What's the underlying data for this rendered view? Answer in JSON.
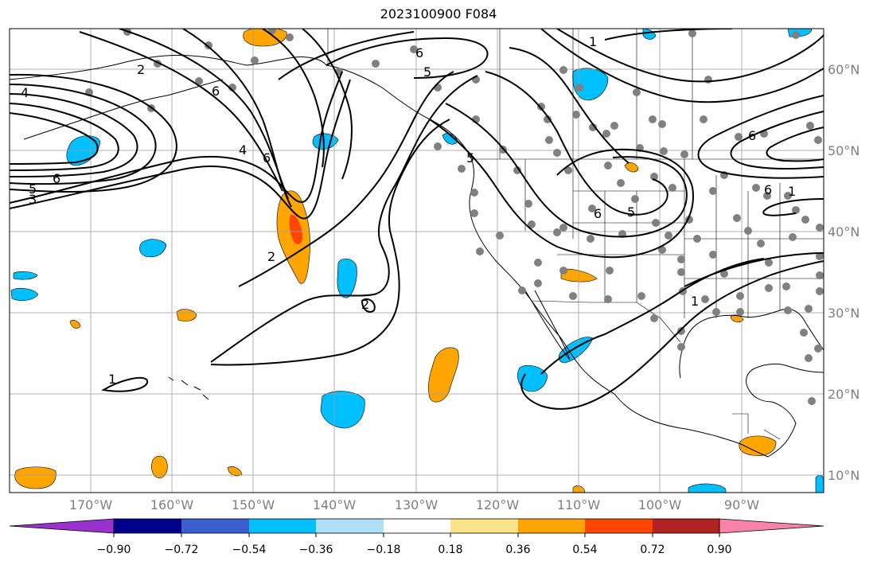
{
  "title": "2023100900 F084",
  "lon_labels": [
    "170°W",
    "160°W",
    "150°W",
    "140°W",
    "130°W",
    "120°W",
    "110°W",
    "100°W",
    "90°W"
  ],
  "lat_labels": [
    "60°N",
    "50°N",
    "40°N",
    "30°N",
    "20°N",
    "10°N"
  ],
  "colorbar": {
    "tick_labels": [
      "−0.90",
      "−0.72",
      "−0.54",
      "−0.36",
      "−0.18",
      "0.18",
      "0.36",
      "0.54",
      "0.72",
      "0.90"
    ],
    "colors": [
      "#9932cc",
      "#00008b",
      "#3a5fcd",
      "#00bfff",
      "#b0e0f8",
      "#ffffff",
      "#fbe38a",
      "#ffa500",
      "#ff4500",
      "#b22222",
      "#f883a9"
    ]
  },
  "contour_labels": [
    "4",
    "5",
    "3",
    "6",
    "1",
    "2",
    "6",
    "4",
    "6",
    "2",
    "2",
    "6",
    "5",
    "5",
    "6",
    "5",
    "6",
    "1",
    "1",
    "1",
    "6"
  ],
  "colors": {
    "contour": "#000000",
    "coast": "#000000",
    "grid": "#a0a0a0",
    "dots": "#808080",
    "positive": "#ffa500",
    "negative": "#00bfff"
  }
}
